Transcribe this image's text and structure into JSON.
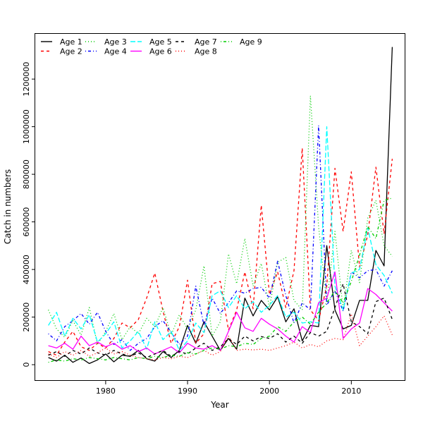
{
  "chart_data": {
    "type": "line",
    "title": "",
    "xlabel": "Year",
    "ylabel": "Catch in numbers",
    "grid": false,
    "legend_position": "top-left-horizontal-2rows",
    "x_ticks": [
      1980,
      1990,
      2000,
      2010
    ],
    "y_ticks": [
      0,
      200000,
      400000,
      600000,
      800000,
      1000000,
      1200000
    ],
    "xlim": [
      1971.4,
      2016.6
    ],
    "ylim": [
      -68000,
      1393000
    ],
    "x": [
      1973,
      1974,
      1975,
      1976,
      1977,
      1978,
      1979,
      1980,
      1981,
      1982,
      1983,
      1984,
      1985,
      1986,
      1987,
      1988,
      1989,
      1990,
      1991,
      1992,
      1993,
      1994,
      1995,
      1996,
      1997,
      1998,
      1999,
      2000,
      2001,
      2002,
      2003,
      2004,
      2005,
      2006,
      2007,
      2008,
      2009,
      2010,
      2011,
      2012,
      2013,
      2014,
      2015
    ],
    "series": [
      {
        "name": "Age 1",
        "color": "#000000",
        "linestyle": "solid",
        "values": [
          30000,
          15000,
          40000,
          10000,
          28000,
          5000,
          20000,
          45000,
          12000,
          40000,
          35000,
          60000,
          25000,
          15000,
          55000,
          30000,
          60000,
          165000,
          90000,
          180000,
          120000,
          60000,
          110000,
          65000,
          280000,
          205000,
          270000,
          230000,
          285000,
          180000,
          235000,
          100000,
          165000,
          160000,
          500000,
          230000,
          150000,
          165000,
          270000,
          270000,
          480000,
          415000,
          1335000
        ]
      },
      {
        "name": "Age 2",
        "color": "#FF0000",
        "linestyle": "dashed",
        "values": [
          55000,
          40000,
          95000,
          140000,
          75000,
          60000,
          90000,
          70000,
          110000,
          175000,
          155000,
          190000,
          280000,
          385000,
          225000,
          90000,
          160000,
          355000,
          90000,
          130000,
          340000,
          350000,
          145000,
          230000,
          390000,
          235000,
          670000,
          295000,
          390000,
          240000,
          395000,
          910000,
          230000,
          185000,
          330000,
          825000,
          560000,
          810000,
          410000,
          545000,
          830000,
          550000,
          865000
        ]
      },
      {
        "name": "Age 3",
        "color": "#00CD00",
        "linestyle": "dotted",
        "values": [
          230000,
          150000,
          115000,
          185000,
          125000,
          240000,
          85000,
          140000,
          215000,
          105000,
          160000,
          130000,
          195000,
          160000,
          240000,
          125000,
          210000,
          150000,
          230000,
          415000,
          120000,
          180000,
          465000,
          340000,
          530000,
          330000,
          425000,
          240000,
          430000,
          450000,
          270000,
          230000,
          1130000,
          580000,
          260000,
          560000,
          230000,
          480000,
          345000,
          615000,
          690000,
          500000,
          455000
        ]
      },
      {
        "name": "Age 4",
        "color": "#0000FF",
        "linestyle": "dotdash",
        "values": [
          130000,
          100000,
          160000,
          185000,
          215000,
          170000,
          220000,
          140000,
          85000,
          105000,
          60000,
          90000,
          110000,
          160000,
          185000,
          135000,
          85000,
          120000,
          330000,
          165000,
          280000,
          215000,
          260000,
          310000,
          300000,
          320000,
          325000,
          280000,
          435000,
          290000,
          175000,
          260000,
          230000,
          1005000,
          250000,
          310000,
          225000,
          390000,
          365000,
          395000,
          400000,
          330000,
          395000
        ]
      },
      {
        "name": "Age 5",
        "color": "#00FFFF",
        "linestyle": "longdash",
        "values": [
          165000,
          220000,
          120000,
          195000,
          150000,
          210000,
          95000,
          130000,
          180000,
          70000,
          100000,
          140000,
          65000,
          180000,
          105000,
          140000,
          60000,
          100000,
          175000,
          135000,
          290000,
          310000,
          240000,
          290000,
          235000,
          265000,
          220000,
          250000,
          290000,
          200000,
          220000,
          175000,
          180000,
          175000,
          1000000,
          330000,
          230000,
          385000,
          400000,
          575000,
          420000,
          375000,
          300000
        ]
      },
      {
        "name": "Age 6",
        "color": "#FF00FF",
        "linestyle": "solid",
        "values": [
          80000,
          70000,
          90000,
          65000,
          120000,
          80000,
          95000,
          75000,
          90000,
          65000,
          80000,
          55000,
          70000,
          45000,
          60000,
          75000,
          50000,
          90000,
          70000,
          65000,
          80000,
          60000,
          140000,
          220000,
          155000,
          140000,
          195000,
          170000,
          150000,
          120000,
          95000,
          160000,
          135000,
          260000,
          280000,
          390000,
          110000,
          150000,
          175000,
          320000,
          295000,
          260000,
          225000
        ]
      },
      {
        "name": "Age 7",
        "color": "#000000",
        "linestyle": "dashed",
        "values": [
          40000,
          55000,
          35000,
          60000,
          45000,
          70000,
          50000,
          40000,
          60000,
          45000,
          35000,
          50000,
          30000,
          45000,
          60000,
          35000,
          55000,
          45000,
          70000,
          90000,
          60000,
          75000,
          110000,
          85000,
          120000,
          100000,
          118000,
          110000,
          130000,
          95000,
          120000,
          90000,
          135000,
          120000,
          140000,
          240000,
          340000,
          180000,
          160000,
          130000,
          265000,
          280000,
          190000
        ]
      },
      {
        "name": "Age 8",
        "color": "#FF0000",
        "linestyle": "dotted",
        "values": [
          45000,
          30000,
          55000,
          40000,
          60000,
          35000,
          50000,
          70000,
          45000,
          55000,
          40000,
          30000,
          25000,
          20000,
          30000,
          25000,
          35000,
          30000,
          45000,
          60000,
          40000,
          55000,
          120000,
          60000,
          65000,
          62000,
          65000,
          60000,
          70000,
          80000,
          95000,
          70000,
          85000,
          75000,
          100000,
          110000,
          105000,
          213000,
          80000,
          120000,
          160000,
          205000,
          125000
        ]
      },
      {
        "name": "Age 9",
        "color": "#00CD00",
        "linestyle": "dotdash",
        "values": [
          10000,
          20000,
          15000,
          25000,
          20000,
          30000,
          25000,
          20000,
          30000,
          25000,
          20000,
          30000,
          25000,
          35000,
          30000,
          40000,
          35000,
          50000,
          45000,
          60000,
          70000,
          65000,
          80000,
          75000,
          90000,
          85000,
          110000,
          120000,
          160000,
          140000,
          180000,
          200000,
          170000,
          220000,
          260000,
          310000,
          260000,
          350000,
          460000,
          580000,
          530000,
          690000,
          700000
        ]
      }
    ]
  }
}
